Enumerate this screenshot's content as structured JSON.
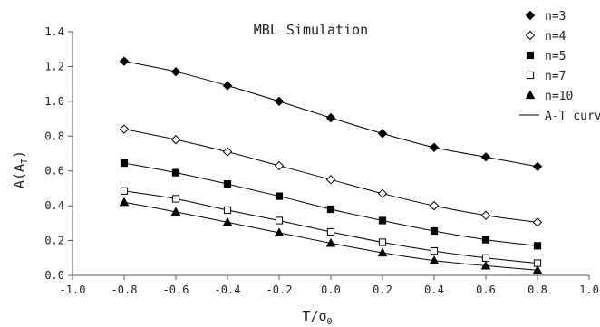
{
  "chart_data": {
    "type": "scatter",
    "title": "MBL Simulation",
    "xlabel": "T/σ",
    "xlabel_sub": "0",
    "ylabel": "A(A",
    "ylabel_sub": "T",
    "ylabel_end": ")",
    "xlim": [
      -1.0,
      1.0
    ],
    "ylim": [
      0.0,
      1.4
    ],
    "x_ticks": [
      -1.0,
      -0.8,
      -0.6,
      -0.4,
      -0.2,
      0.0,
      0.2,
      0.4,
      0.6,
      0.8,
      1.0
    ],
    "x_tick_labels": [
      "-1.0",
      "-0.8",
      "-0.6",
      "-0.4",
      "-0.2",
      "0.0",
      "0.2",
      "0.4",
      "0.6",
      "0.8",
      "1.0"
    ],
    "y_ticks": [
      0.0,
      0.2,
      0.4,
      0.6,
      0.8,
      1.0,
      1.2,
      1.4
    ],
    "y_tick_labels": [
      "0.0",
      "0.2",
      "0.4",
      "0.6",
      "0.8",
      "1.0",
      "1.2",
      "1.4"
    ],
    "grid": false,
    "legend_position": "right",
    "x": [
      -0.8,
      -0.6,
      -0.4,
      -0.2,
      0.0,
      0.2,
      0.4,
      0.6,
      0.8
    ],
    "series": [
      {
        "name": "n=3",
        "marker": "diamond-filled",
        "values": [
          1.23,
          1.17,
          1.09,
          1.0,
          0.905,
          0.815,
          0.735,
          0.68,
          0.625
        ]
      },
      {
        "name": "n=4",
        "marker": "diamond-open",
        "values": [
          0.84,
          0.78,
          0.71,
          0.63,
          0.55,
          0.47,
          0.4,
          0.345,
          0.305
        ]
      },
      {
        "name": "n=5",
        "marker": "square-filled",
        "values": [
          0.645,
          0.59,
          0.525,
          0.455,
          0.38,
          0.315,
          0.255,
          0.205,
          0.17
        ]
      },
      {
        "name": "n=7",
        "marker": "square-open",
        "values": [
          0.485,
          0.44,
          0.375,
          0.315,
          0.25,
          0.19,
          0.14,
          0.1,
          0.07
        ]
      },
      {
        "name": "n=10",
        "marker": "triangle-filled",
        "values": [
          0.42,
          0.365,
          0.305,
          0.245,
          0.185,
          0.13,
          0.085,
          0.055,
          0.03
        ]
      }
    ],
    "curve_label": "A-T curve",
    "colors": {
      "marker": "#000000",
      "curve": "#000000",
      "axis": "#555555"
    }
  }
}
